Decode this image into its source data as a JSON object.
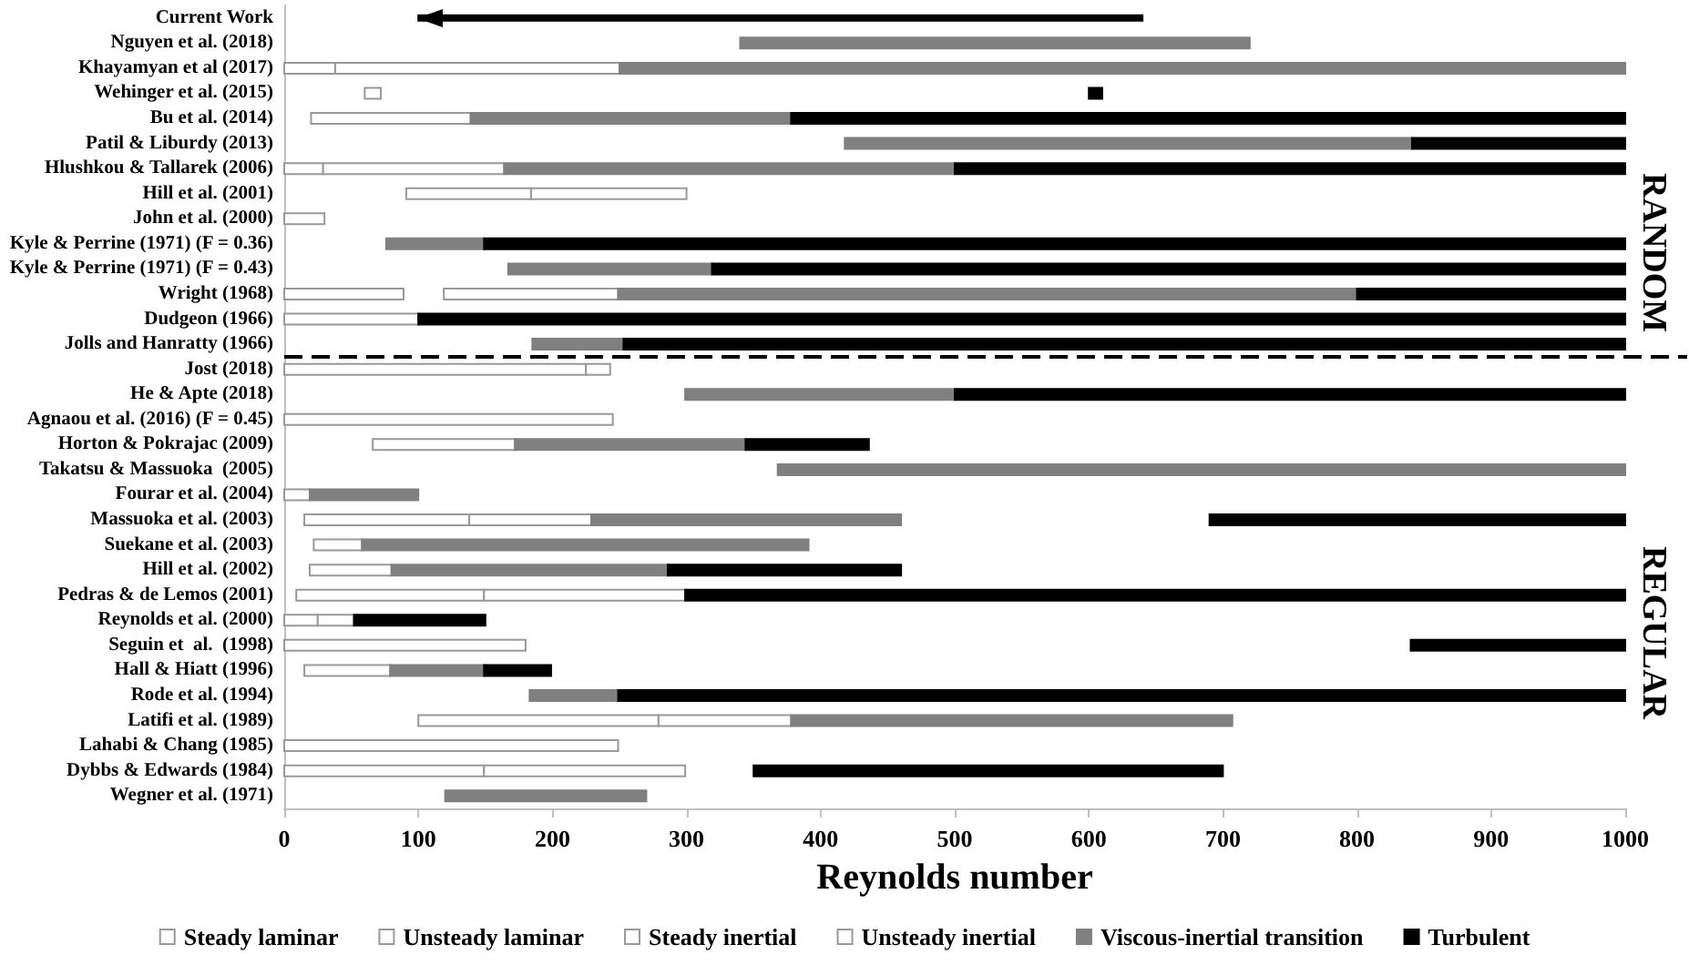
{
  "chart_data": {
    "type": "bar",
    "orientation": "horizontal",
    "xlabel": "Reynolds number",
    "xlim": [
      0,
      1000
    ],
    "xticks": [
      0,
      100,
      200,
      300,
      400,
      500,
      600,
      700,
      800,
      900,
      {
        "value": 1000,
        "label": "1000"
      }
    ],
    "legend": "bottom",
    "categories": [
      "Current Work",
      "Nguyen et al. (2018)",
      "Khayamyan et al (2017)",
      "Wehinger et al. (2015)",
      "Bu et al. (2014)",
      "Patil & Liburdy (2013)",
      "Hlushkou & Tallarek (2006)",
      "Hill et al. (2001)",
      "John et al. (2000)",
      "Kyle & Perrine (1971) (F = 0.36)",
      "Kyle & Perrine (1971) (F = 0.43)",
      "Wright (1968)",
      "Dudgeon (1966)",
      "Jolls and Hanratty (1966)",
      "Jost (2018)",
      "He & Apte (2018)",
      "Agnaou et al. (2016) (F = 0.45)",
      "Horton & Pokrajac (2009)",
      "Takatsu & Massuoka  (2005)",
      "Fourar et al. (2004)",
      "Massuoka et al. (2003)",
      "Suekane et al. (2003)",
      "Hill et al. (2002)",
      "Pedras & de Lemos (2001)",
      "Reynolds et al. (2000)",
      "Seguin et  al.  (1998)",
      "Hall & Hiatt (1996)",
      "Rode et al. (1994)",
      "Latifi et al. (1989)",
      "Lahabi & Chang (1985)",
      "Dybbs & Edwards (1984)",
      "Wegner et al. (1971)"
    ],
    "series": [
      {
        "name": "Steady laminar",
        "color": "#ffffff",
        "base": [
          null,
          null,
          0,
          60,
          20,
          null,
          0,
          null,
          0,
          null,
          null,
          0,
          0,
          null,
          0,
          null,
          0,
          null,
          null,
          0,
          15,
          22,
          19,
          9,
          0,
          0,
          15,
          null,
          null,
          0,
          0,
          null
        ],
        "values": [
          null,
          null,
          38,
          12,
          119,
          null,
          29,
          null,
          30,
          null,
          null,
          89,
          100,
          null,
          225,
          null,
          245,
          null,
          null,
          19,
          123,
          36,
          61,
          140,
          25,
          180,
          64,
          null,
          null,
          249,
          149,
          null
        ]
      },
      {
        "name": "Unsteady laminar",
        "color": "#ffffff",
        "base": [
          null,
          null,
          null,
          null,
          null,
          null,
          null,
          184,
          null,
          null,
          null,
          null,
          null,
          null,
          null,
          null,
          null,
          null,
          null,
          null,
          null,
          null,
          null,
          149,
          null,
          null,
          null,
          null,
          279,
          null,
          149,
          null
        ],
        "values": [
          null,
          null,
          null,
          null,
          null,
          null,
          null,
          116,
          null,
          null,
          null,
          null,
          null,
          null,
          null,
          null,
          null,
          null,
          null,
          null,
          null,
          null,
          null,
          150,
          null,
          null,
          null,
          null,
          99,
          null,
          150,
          null
        ]
      },
      {
        "name": "Steady inertial",
        "color": "#ffffff",
        "base": [
          null,
          null,
          38,
          null,
          null,
          null,
          29,
          91,
          null,
          null,
          null,
          null,
          null,
          null,
          225,
          null,
          null,
          66,
          null,
          null,
          138,
          null,
          null,
          null,
          25,
          null,
          null,
          null,
          100,
          null,
          null,
          null
        ],
        "values": [
          null,
          null,
          212,
          null,
          null,
          null,
          135,
          93,
          null,
          null,
          null,
          null,
          null,
          null,
          18,
          null,
          null,
          106,
          null,
          null,
          91,
          null,
          null,
          null,
          27,
          null,
          null,
          null,
          179,
          null,
          null,
          null
        ]
      },
      {
        "name": "Unsteady inertial",
        "color": "#ffffff",
        "base": [
          null,
          null,
          null,
          null,
          null,
          null,
          null,
          null,
          null,
          null,
          null,
          119,
          null,
          null,
          null,
          null,
          null,
          null,
          null,
          null,
          null,
          null,
          null,
          null,
          null,
          null,
          null,
          null,
          null,
          null,
          null,
          null
        ],
        "values": [
          null,
          null,
          null,
          null,
          null,
          null,
          null,
          null,
          null,
          null,
          null,
          130,
          null,
          null,
          null,
          null,
          null,
          null,
          null,
          null,
          null,
          null,
          null,
          null,
          null,
          null,
          null,
          null,
          null,
          null,
          null,
          null
        ]
      },
      {
        "name": "Viscous-inertial transition",
        "color": "#808080",
        "base": [
          null,
          340,
          250,
          null,
          139,
          418,
          164,
          null,
          null,
          76,
          167,
          249,
          null,
          185,
          null,
          299,
          null,
          172,
          368,
          19,
          229,
          58,
          80,
          null,
          null,
          null,
          79,
          183,
          378,
          null,
          null,
          120
        ],
        "values": [
          null,
          380,
          750,
          null,
          239,
          423,
          336,
          null,
          null,
          73,
          152,
          551,
          null,
          68,
          null,
          201,
          null,
          172,
          632,
          81,
          231,
          333,
          206,
          null,
          null,
          null,
          70,
          66,
          329,
          null,
          null,
          150
        ]
      },
      {
        "name": "Turbulent",
        "color": "#000000",
        "base": [
          null,
          null,
          null,
          600,
          378,
          841,
          500,
          null,
          null,
          149,
          319,
          800,
          100,
          253,
          null,
          500,
          null,
          344,
          null,
          null,
          690,
          null,
          286,
          299,
          52,
          840,
          149,
          249,
          null,
          null,
          350,
          null
        ],
        "values": [
          null,
          null,
          null,
          10,
          622,
          159,
          500,
          null,
          null,
          851,
          681,
          200,
          900,
          747,
          null,
          500,
          null,
          92,
          null,
          null,
          310,
          null,
          174,
          701,
          98,
          160,
          50,
          751,
          null,
          null,
          350,
          null
        ]
      },
      {
        "color": "#000000",
        "marker": "triangle",
        "base": [
          100,
          null,
          null,
          null,
          null,
          null,
          null,
          null,
          null,
          null,
          null,
          null,
          null,
          null,
          null,
          null,
          null,
          null,
          null,
          null,
          null,
          null,
          null,
          null,
          null,
          null,
          null,
          null,
          null,
          null,
          null,
          null
        ],
        "values": [
          540,
          null,
          null,
          null,
          null,
          null,
          null,
          null,
          null,
          null,
          null,
          null,
          null,
          null,
          null,
          null,
          null,
          null,
          null,
          null,
          null,
          null,
          null,
          null,
          null,
          null,
          null,
          null,
          null,
          null,
          null,
          null
        ]
      }
    ],
    "annotations": [
      "RANDOM",
      "REGULAR"
    ]
  }
}
